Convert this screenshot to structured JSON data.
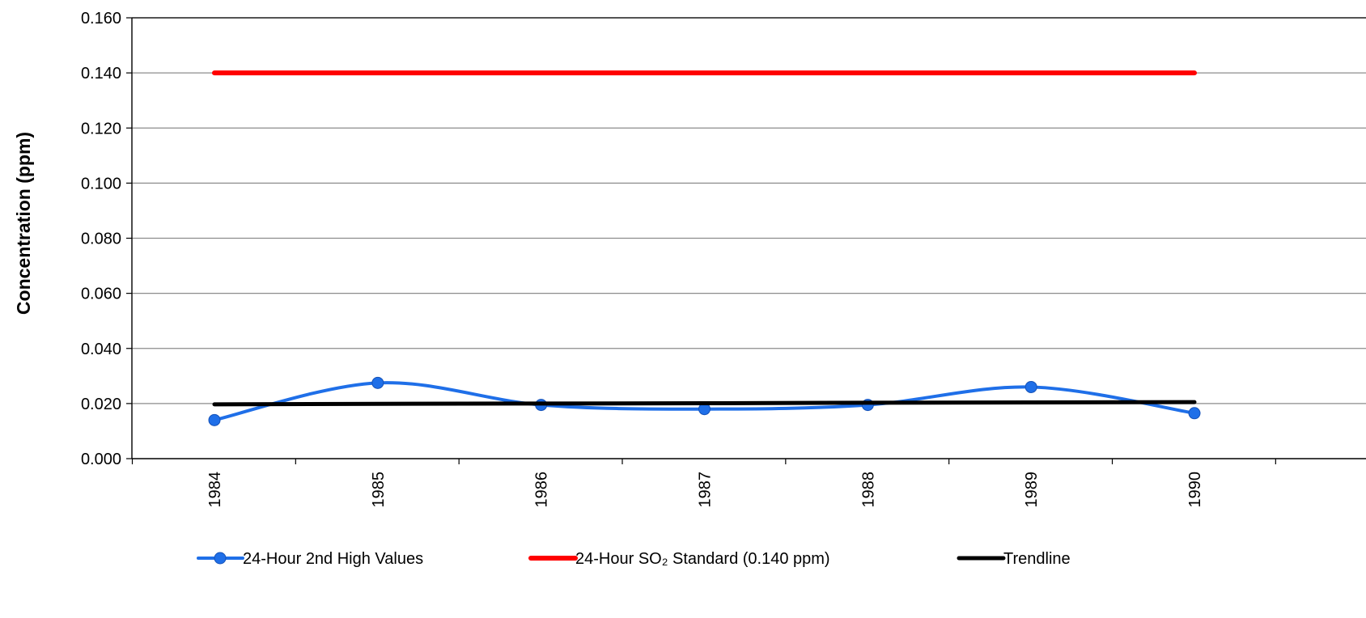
{
  "chart_data": {
    "type": "line",
    "title": "",
    "xlabel": "",
    "ylabel": "Concentration (ppm)",
    "ylim": [
      0,
      0.16
    ],
    "y_ticks": [
      "0.000",
      "0.020",
      "0.040",
      "0.060",
      "0.080",
      "0.100",
      "0.120",
      "0.140",
      "0.160"
    ],
    "categories": [
      "1984",
      "1985",
      "1986",
      "1987",
      "1988",
      "1989",
      "1990"
    ],
    "grid": true,
    "legend_position": "bottom",
    "series": [
      {
        "name": "24-Hour 2nd High Values",
        "color": "#1f6fe8",
        "marker": "circle",
        "smooth": true,
        "values": [
          0.014,
          0.0275,
          0.0195,
          0.018,
          0.0195,
          0.026,
          0.0165
        ]
      },
      {
        "name": "24-Hour SO₂ Standard (0.140 ppm)",
        "color": "#ff0000",
        "marker": "none",
        "smooth": false,
        "values": [
          0.14,
          0.14,
          0.14,
          0.14,
          0.14,
          0.14,
          0.14
        ]
      },
      {
        "name": "Trendline",
        "color": "#000000",
        "marker": "none",
        "smooth": false,
        "values": [
          0.0197,
          0.0199,
          0.02,
          0.0201,
          0.0203,
          0.0204,
          0.0205
        ]
      }
    ]
  }
}
